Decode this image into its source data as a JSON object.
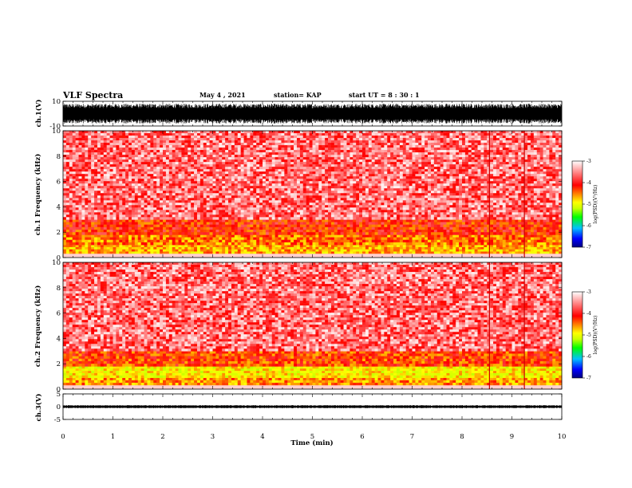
{
  "header": {
    "title": "VLF Spectra",
    "date": "May 4 , 2021",
    "station": "station= KAP",
    "start_ut": "start UT = 8 : 30 : 1"
  },
  "chart_data": [
    {
      "type": "line",
      "panel": "waveform-ch1",
      "ylabel": "ch.1(V)",
      "ylim": [
        -10,
        10
      ],
      "yticks": [
        "10",
        "-10"
      ],
      "xlim": [
        0,
        10
      ],
      "description_values": {
        "center": 0,
        "envelope_typical": 8
      },
      "color": "#000000"
    },
    {
      "type": "heatmap",
      "panel": "spectrogram-ch1",
      "ylabel": "ch.1 Frequency (kHz)",
      "ylim": [
        0,
        10
      ],
      "yticks": [
        "0",
        "2",
        "4",
        "6",
        "8",
        "10"
      ],
      "xlim": [
        0,
        10
      ],
      "colorbar": {
        "label": "log(PSD)(V²/Hz)",
        "range": [
          -7,
          -3
        ],
        "ticks": [
          "-3",
          "-4",
          "-5",
          "-6",
          "-7"
        ],
        "colors": [
          "#000080",
          "#0000ff",
          "#00c0ff",
          "#00ff00",
          "#c8ff00",
          "#ffff00",
          "#ff8000",
          "#ff0000",
          "#ff8080",
          "#ffffff"
        ]
      },
      "bands_khz": [
        {
          "from": 0.3,
          "to": 1.0,
          "level": -4.5
        },
        {
          "from": 1.0,
          "to": 1.8,
          "level": -4.3
        },
        {
          "from": 1.8,
          "to": 3.0,
          "level": -4.0
        },
        {
          "from": 3.0,
          "to": 10.0,
          "level": -3.5
        }
      ],
      "vertical_features_min": [
        8.55,
        9.25
      ]
    },
    {
      "type": "heatmap",
      "panel": "spectrogram-ch2",
      "ylabel": "ch.2 Frequency (kHz)",
      "ylim": [
        0,
        10
      ],
      "yticks": [
        "0",
        "2",
        "4",
        "6",
        "8",
        "10"
      ],
      "xlim": [
        0,
        10
      ],
      "colorbar": {
        "label": "log(PSD)(V²/Hz)",
        "range": [
          -7,
          -3
        ],
        "ticks": [
          "-3",
          "-4",
          "-5",
          "-6",
          "-7"
        ],
        "colors": [
          "#000080",
          "#0000ff",
          "#00c0ff",
          "#00ff00",
          "#c8ff00",
          "#ffff00",
          "#ff8000",
          "#ff0000",
          "#ff8080",
          "#ffffff"
        ]
      },
      "bands_khz": [
        {
          "from": 0.3,
          "to": 0.9,
          "level": -4.4
        },
        {
          "from": 0.9,
          "to": 1.8,
          "level": -4.8
        },
        {
          "from": 1.8,
          "to": 3.0,
          "level": -4.1
        },
        {
          "from": 3.0,
          "to": 10.0,
          "level": -3.5
        }
      ],
      "vertical_features_min": [
        8.55,
        9.25
      ]
    },
    {
      "type": "line",
      "panel": "waveform-ch3",
      "ylabel": "ch.3(V)",
      "ylim": [
        -5,
        5
      ],
      "yticks": [
        "5",
        "0",
        "-5"
      ],
      "xlim": [
        0,
        10
      ],
      "xlabel": "Time (min)",
      "xticks": [
        "0",
        "1",
        "2",
        "3",
        "4",
        "5",
        "6",
        "7",
        "8",
        "9",
        "10"
      ],
      "description_values": {
        "center": 0,
        "envelope_typical": 0.6
      },
      "color": "#000000"
    }
  ]
}
